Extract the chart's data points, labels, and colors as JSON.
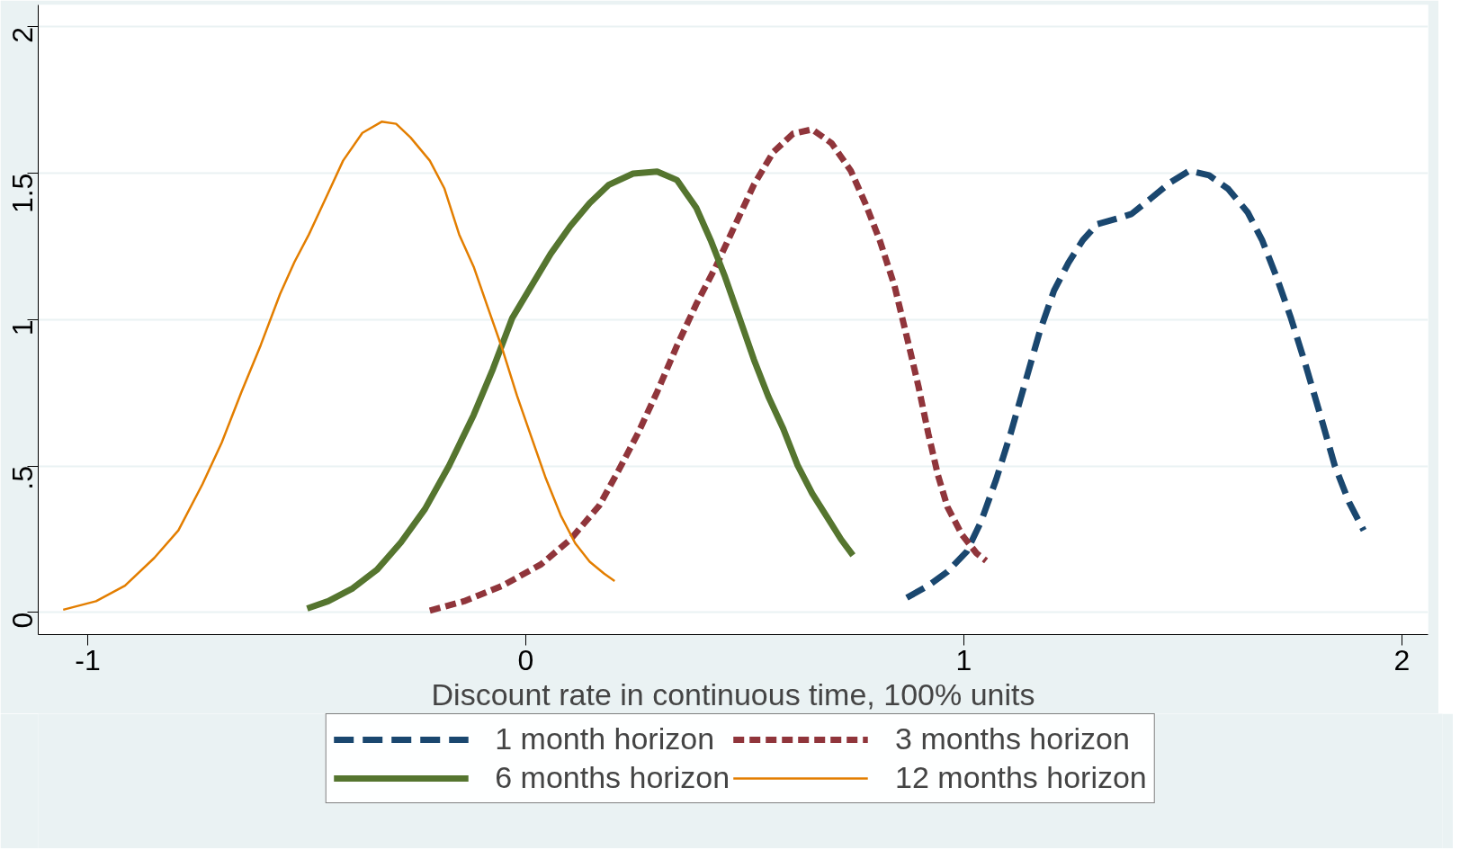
{
  "chart_data": {
    "type": "line",
    "xlabel": "Discount rate in continuous time, 100% units",
    "xlim": [
      -1.113,
      2.06
    ],
    "ylim": [
      -0.076,
      2.075
    ],
    "xticks": [
      -1,
      0,
      1,
      2
    ],
    "yticks": [
      0,
      {
        "value": 0.5,
        "label": ".5"
      },
      1,
      1.5,
      2
    ],
    "grid": "y",
    "legend": "bottom",
    "series": [
      {
        "name": "1 month horizon",
        "color": "#1a476f",
        "line_style": "dashed",
        "x": [
          0.87,
          0.919,
          0.963,
          1.007,
          1.04,
          1.074,
          1.107,
          1.14,
          1.173,
          1.206,
          1.239,
          1.272,
          1.305,
          1.35,
          1.383,
          1.427,
          1.471,
          1.515,
          1.56,
          1.604,
          1.648,
          1.681,
          1.714,
          1.747,
          1.78,
          1.814,
          1.847,
          1.88,
          1.913
        ],
        "values": [
          0.05,
          0.091,
          0.139,
          0.208,
          0.312,
          0.454,
          0.611,
          0.784,
          0.957,
          1.099,
          1.194,
          1.272,
          1.326,
          1.345,
          1.361,
          1.414,
          1.468,
          1.509,
          1.493,
          1.446,
          1.367,
          1.272,
          1.146,
          1.005,
          0.847,
          0.674,
          0.501,
          0.375,
          0.28
        ]
      },
      {
        "name": "3 months horizon",
        "color": "#90353b",
        "line_style": "dashed",
        "x": [
          -0.219,
          -0.141,
          -0.053,
          0.035,
          0.102,
          0.168,
          0.212,
          0.256,
          0.3,
          0.345,
          0.389,
          0.433,
          0.477,
          0.521,
          0.565,
          0.61,
          0.654,
          0.698,
          0.742,
          0.775,
          0.808,
          0.842,
          0.875,
          0.897,
          0.919,
          0.941,
          0.963,
          0.996,
          1.029,
          1.051
        ],
        "values": [
          0.006,
          0.038,
          0.091,
          0.164,
          0.249,
          0.365,
          0.485,
          0.611,
          0.753,
          0.91,
          1.052,
          1.178,
          1.32,
          1.461,
          1.572,
          1.635,
          1.65,
          1.603,
          1.509,
          1.398,
          1.272,
          1.115,
          0.91,
          0.769,
          0.611,
          0.469,
          0.359,
          0.265,
          0.202,
          0.176
        ]
      },
      {
        "name": "6 months horizon",
        "color": "#55752f",
        "line_style": "solid",
        "x": [
          -0.499,
          -0.451,
          -0.395,
          -0.34,
          -0.285,
          -0.23,
          -0.175,
          -0.119,
          -0.075,
          -0.031,
          0.013,
          0.057,
          0.102,
          0.146,
          0.19,
          0.245,
          0.3,
          0.345,
          0.389,
          0.422,
          0.455,
          0.488,
          0.521,
          0.554,
          0.588,
          0.621,
          0.654,
          0.687,
          0.72,
          0.747
        ],
        "values": [
          0.013,
          0.038,
          0.082,
          0.145,
          0.239,
          0.353,
          0.501,
          0.674,
          0.831,
          1.005,
          1.115,
          1.225,
          1.32,
          1.398,
          1.461,
          1.499,
          1.506,
          1.477,
          1.383,
          1.272,
          1.146,
          1.005,
          0.863,
          0.737,
          0.627,
          0.501,
          0.406,
          0.328,
          0.249,
          0.195
        ]
      },
      {
        "name": "12 months horizon",
        "color": "#e37e00",
        "line_style": "solid",
        "x": [
          -1.056,
          -0.981,
          -0.915,
          -0.848,
          -0.793,
          -0.738,
          -0.694,
          -0.649,
          -0.605,
          -0.561,
          -0.528,
          -0.495,
          -0.451,
          -0.417,
          -0.373,
          -0.329,
          -0.296,
          -0.263,
          -0.219,
          -0.186,
          -0.152,
          -0.119,
          -0.086,
          -0.053,
          -0.02,
          0.013,
          0.046,
          0.08,
          0.113,
          0.146,
          0.179,
          0.203
        ],
        "values": [
          0.009,
          0.038,
          0.091,
          0.186,
          0.28,
          0.438,
          0.58,
          0.753,
          0.913,
          1.087,
          1.197,
          1.291,
          1.433,
          1.543,
          1.638,
          1.676,
          1.669,
          1.622,
          1.543,
          1.449,
          1.291,
          1.181,
          1.039,
          0.898,
          0.74,
          0.598,
          0.457,
          0.331,
          0.236,
          0.173,
          0.132,
          0.107
        ]
      }
    ]
  }
}
